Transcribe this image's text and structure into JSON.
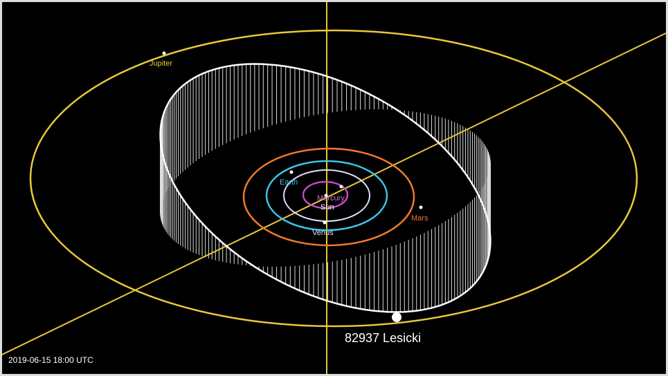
{
  "bodies": {
    "jupiter": "Jupiter",
    "earth": "Earth",
    "mercury": "Mercury",
    "sun": "Sun",
    "venus": "Venus",
    "mars": "Mars"
  },
  "object": {
    "name": "82937 Lesicki"
  },
  "timestamp": "2019-06-15 18:00 UTC"
}
